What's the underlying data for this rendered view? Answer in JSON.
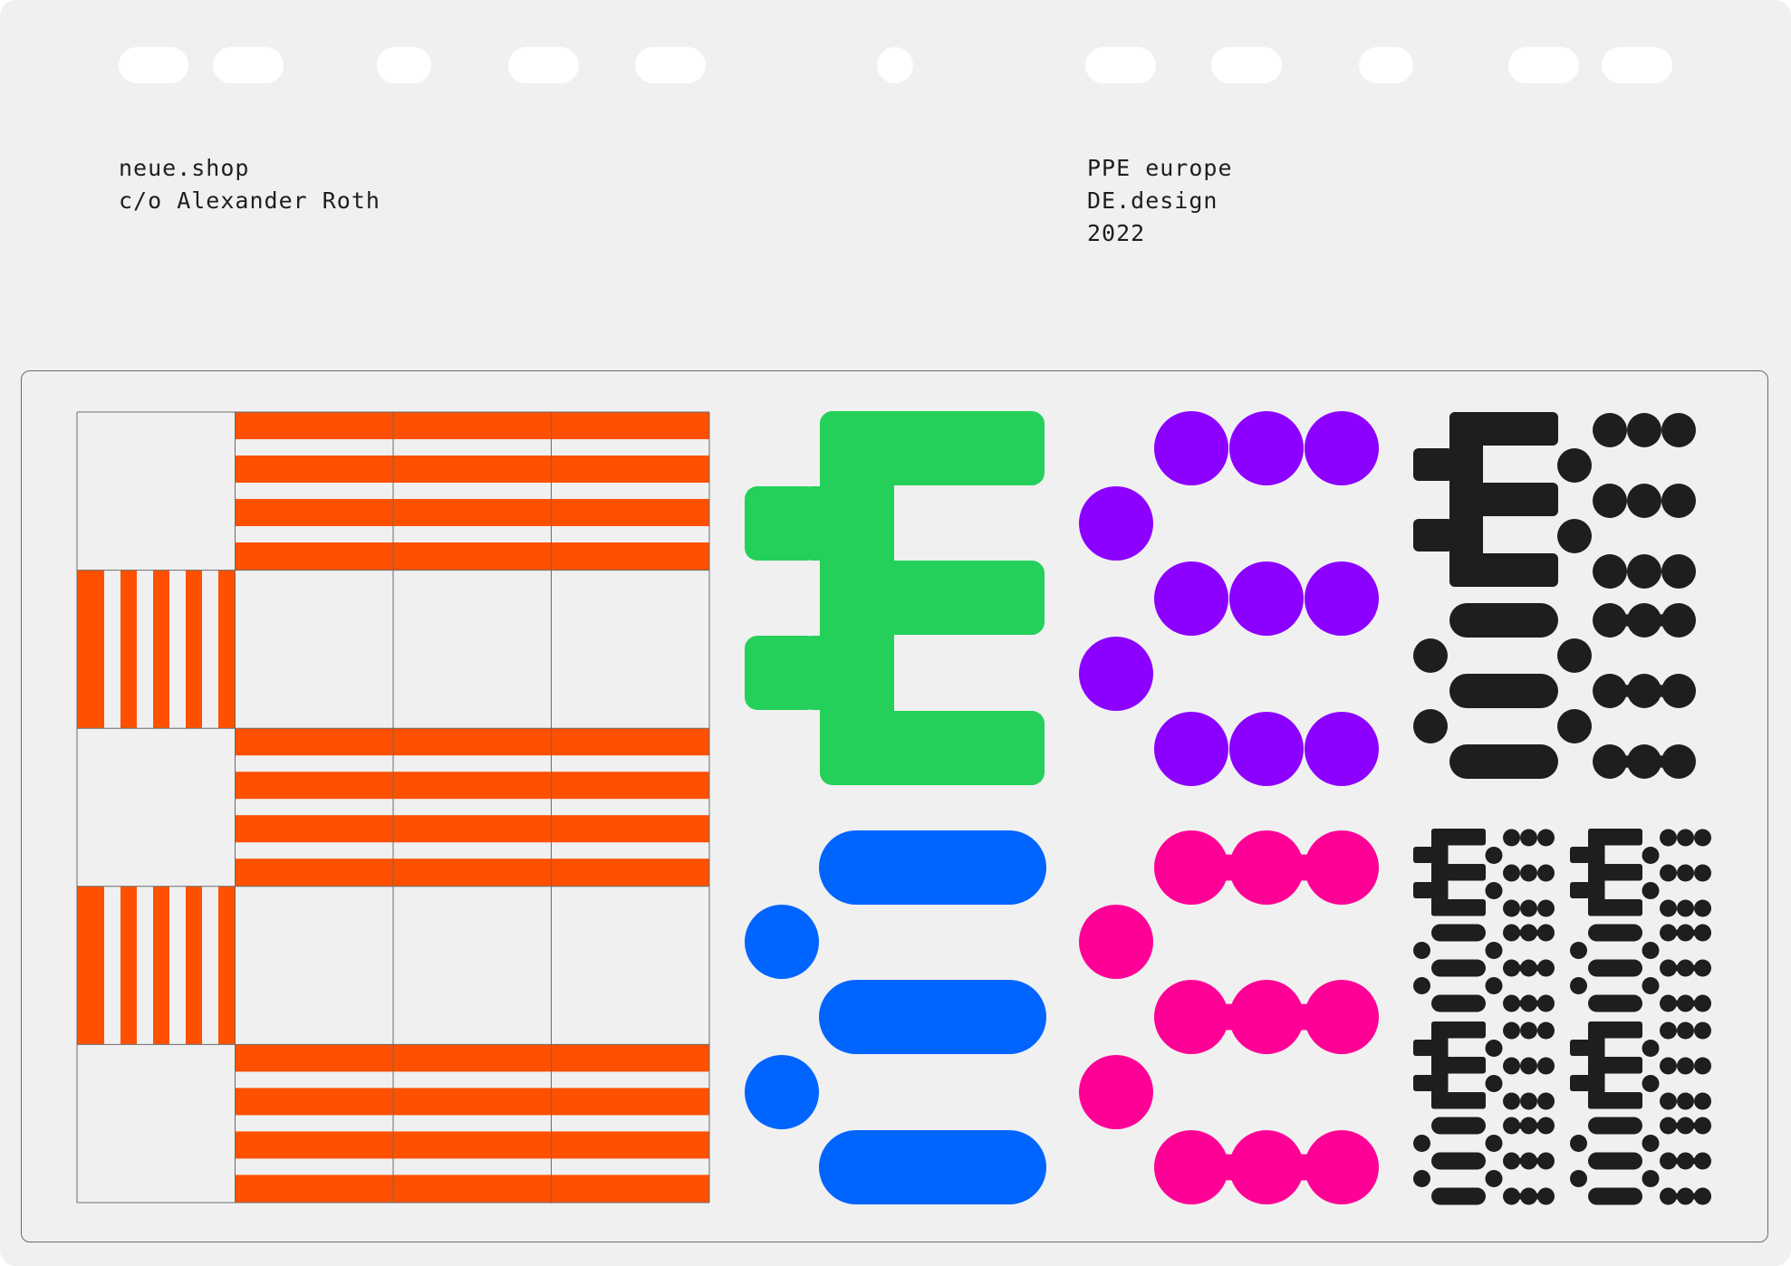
{
  "header": {
    "sender": [
      "neue.shop",
      "c/o Alexander Roth"
    ],
    "recipient": [
      "PPE europe",
      "DE.design",
      "2022"
    ]
  },
  "colors": {
    "background": "#f0f0f0",
    "orange": "#ff5000",
    "green": "#25d05a",
    "blue": "#0064ff",
    "purple": "#8c00ff",
    "pink": "#ff0096",
    "black": "#1e1e1e"
  },
  "glyphs": [
    {
      "name": "stripe-grid-glyph",
      "color": "orange"
    },
    {
      "name": "square-e-glyph",
      "color": "green"
    },
    {
      "name": "rounded-e-glyph",
      "color": "blue"
    },
    {
      "name": "dot-e-glyph",
      "color": "purple"
    },
    {
      "name": "wave-e-glyph",
      "color": "pink"
    },
    {
      "name": "black-glyph-set",
      "color": "black"
    },
    {
      "name": "black-glyph-mini-set",
      "color": "black"
    }
  ]
}
